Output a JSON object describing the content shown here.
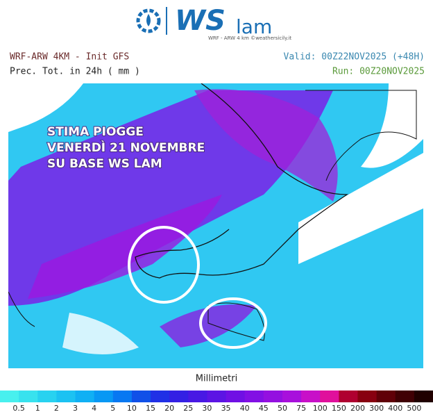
{
  "logo": {
    "brand": "WS",
    "suffix": "lam",
    "tagline": "WRF - ARW 4 km ©weathersicily.it"
  },
  "header": {
    "model": "WRF-ARW 4KM - Init GFS",
    "field": "Prec. Tot. in 24h ( mm )",
    "valid": "Valid: 00Z22NOV2025 (+48H)",
    "run": "Run: 00Z20NOV2025"
  },
  "annotation": [
    "STIMA PIOGGE",
    "VENERDÌ 21 NOVEMBRE",
    "SU BASE WS LAM"
  ],
  "colorbar": {
    "title": "Millimetri",
    "labels": [
      0.5,
      1,
      2,
      3,
      4,
      5,
      10,
      15,
      20,
      25,
      30,
      35,
      40,
      45,
      50,
      75,
      100,
      150,
      200,
      300,
      400,
      500
    ],
    "colors": [
      "#48f0ee",
      "#38e2ee",
      "#28d2f0",
      "#1cc2f2",
      "#10b0f4",
      "#0898f4",
      "#0878f2",
      "#1050e8",
      "#2030e6",
      "#3420e4",
      "#4818e4",
      "#5c14e4",
      "#7010e4",
      "#8210e4",
      "#9410e0",
      "#a810dc",
      "#c810c8",
      "#e0109c",
      "#b00030",
      "#880010",
      "#600008",
      "#400004",
      "#200000"
    ]
  }
}
